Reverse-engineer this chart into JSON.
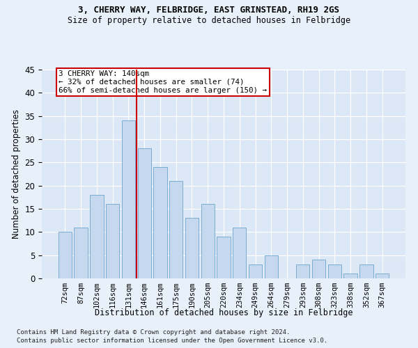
{
  "title1": "3, CHERRY WAY, FELBRIDGE, EAST GRINSTEAD, RH19 2GS",
  "title2": "Size of property relative to detached houses in Felbridge",
  "xlabel": "Distribution of detached houses by size in Felbridge",
  "ylabel": "Number of detached properties",
  "categories": [
    "72sqm",
    "87sqm",
    "102sqm",
    "116sqm",
    "131sqm",
    "146sqm",
    "161sqm",
    "175sqm",
    "190sqm",
    "205sqm",
    "220sqm",
    "234sqm",
    "249sqm",
    "264sqm",
    "279sqm",
    "293sqm",
    "308sqm",
    "323sqm",
    "338sqm",
    "352sqm",
    "367sqm"
  ],
  "values": [
    10,
    11,
    18,
    16,
    34,
    28,
    24,
    21,
    13,
    16,
    9,
    11,
    3,
    5,
    0,
    3,
    4,
    3,
    1,
    3,
    1
  ],
  "bar_color": "#c5d8ee",
  "bar_edge_color": "#7aadd4",
  "vline_color": "#cc0000",
  "vline_x_index": 4,
  "annotation_text": "3 CHERRY WAY: 140sqm\n← 32% of detached houses are smaller (74)\n66% of semi-detached houses are larger (150) →",
  "annotation_box_color": "#ffffff",
  "annotation_box_edge_color": "#cc0000",
  "ylim": [
    0,
    45
  ],
  "yticks": [
    0,
    5,
    10,
    15,
    20,
    25,
    30,
    35,
    40,
    45
  ],
  "footnote1": "Contains HM Land Registry data © Crown copyright and database right 2024.",
  "footnote2": "Contains public sector information licensed under the Open Government Licence v3.0.",
  "bg_color": "#e8f0fa",
  "plot_bg_color": "#dce8f5"
}
